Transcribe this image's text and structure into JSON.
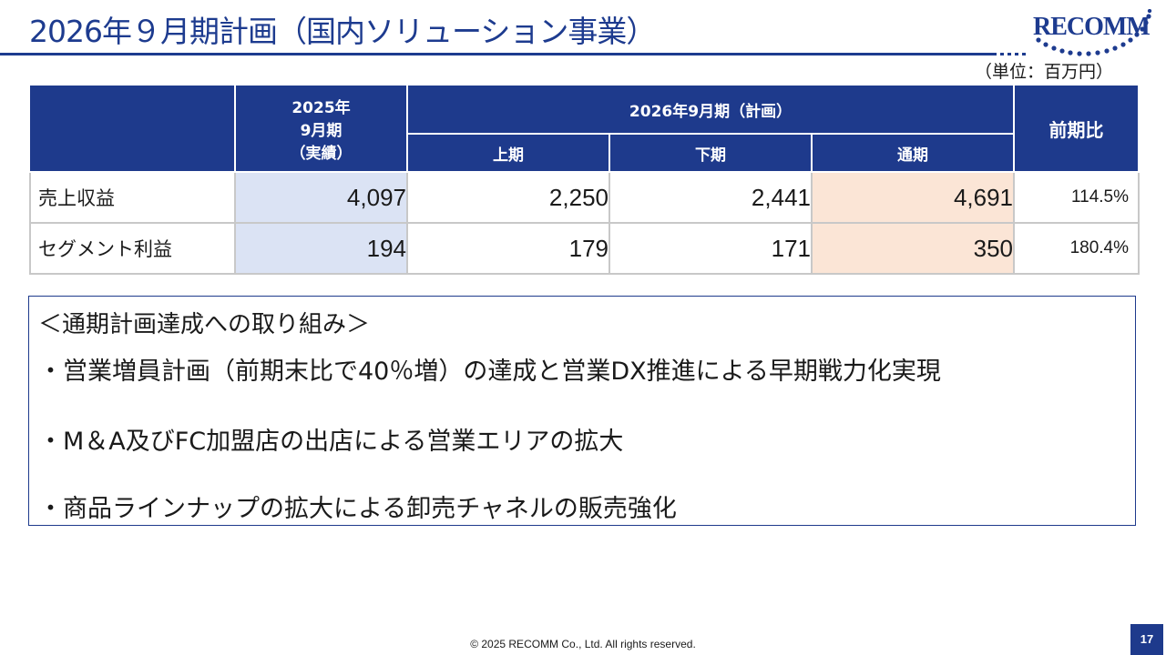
{
  "slide": {
    "title": "2026年９月期計画（国内ソリューション事業）",
    "logo_text": "RECOMM",
    "unit": "（単位：百万円）",
    "footer": "© 2025 RECOMM Co., Ltd. All rights reserved.",
    "page_number": "17"
  },
  "table": {
    "header": {
      "actual_line1": "2025年",
      "actual_line2": "9月期",
      "actual_line3": "（実績）",
      "plan_group": "2026年9月期（計画）",
      "h1": "上期",
      "h2": "下期",
      "full": "通期",
      "ratio": "前期比"
    },
    "rows": [
      {
        "label": "売上収益",
        "actual": "4,097",
        "h1": "2,250",
        "h2": "2,441",
        "full": "4,691",
        "ratio": "114.5%"
      },
      {
        "label": "セグメント利益",
        "actual": "194",
        "h1": "179",
        "h2": "171",
        "full": "350",
        "ratio": "180.4%"
      }
    ]
  },
  "initiatives": {
    "heading": "＜通期計画達成への取り組み＞",
    "items": [
      "・営業増員計画（前期末比で40％増）の達成と営業DX推進による早期戦力化実現",
      "・M＆A及びFC加盟店の出店による営業エリアの拡大",
      "・商品ラインナップの拡大による卸売チャネルの販売強化"
    ]
  },
  "colors": {
    "brand_navy": "#1e3a8c",
    "actual_fill": "#dbe3f4",
    "full_year_fill": "#fbe5d6"
  }
}
